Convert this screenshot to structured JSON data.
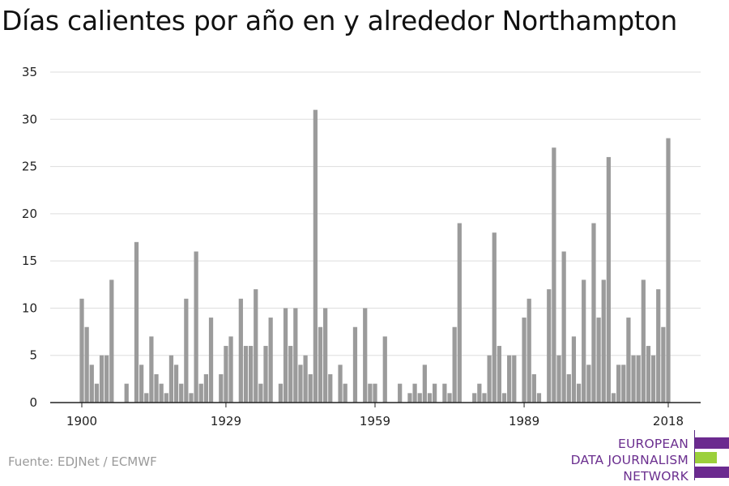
{
  "title": "Días calientes por año en y alrededor Northampton",
  "source": "Fuente: EDJNet / ECMWF",
  "logo": {
    "lines": [
      "EUROPEAN",
      "DATA JOURNALISM",
      "NETWORK"
    ],
    "colors": {
      "purple": "#6b2a8f",
      "green": "#9bd03b"
    }
  },
  "colors": {
    "bar": "#9b9b9b",
    "grid": "#dddddd",
    "axis": "#222222",
    "text": "#222222"
  },
  "chart_data": {
    "type": "bar",
    "title": "Días calientes por año en y alrededor Northampton",
    "xlabel": "",
    "ylabel": "",
    "x_ticks": [
      1900,
      1929,
      1959,
      1989,
      2018
    ],
    "y_ticks": [
      0,
      5,
      10,
      15,
      20,
      25,
      30,
      35
    ],
    "ylim": [
      0,
      35
    ],
    "xlim": [
      1900,
      2018
    ],
    "grid": true,
    "categories": [
      1900,
      1901,
      1902,
      1903,
      1904,
      1905,
      1906,
      1907,
      1908,
      1909,
      1910,
      1911,
      1912,
      1913,
      1914,
      1915,
      1916,
      1917,
      1918,
      1919,
      1920,
      1921,
      1922,
      1923,
      1924,
      1925,
      1926,
      1927,
      1928,
      1929,
      1930,
      1931,
      1932,
      1933,
      1934,
      1935,
      1936,
      1937,
      1938,
      1939,
      1940,
      1941,
      1942,
      1943,
      1944,
      1945,
      1946,
      1947,
      1948,
      1949,
      1950,
      1951,
      1952,
      1953,
      1954,
      1955,
      1956,
      1957,
      1958,
      1959,
      1960,
      1961,
      1962,
      1963,
      1964,
      1965,
      1966,
      1967,
      1968,
      1969,
      1970,
      1971,
      1972,
      1973,
      1974,
      1975,
      1976,
      1977,
      1978,
      1979,
      1980,
      1981,
      1982,
      1983,
      1984,
      1985,
      1986,
      1987,
      1988,
      1989,
      1990,
      1991,
      1992,
      1993,
      1994,
      1995,
      1996,
      1997,
      1998,
      1999,
      2000,
      2001,
      2002,
      2003,
      2004,
      2005,
      2006,
      2007,
      2008,
      2009,
      2010,
      2011,
      2012,
      2013,
      2014,
      2015,
      2016,
      2017,
      2018
    ],
    "values": [
      11,
      8,
      4,
      2,
      5,
      5,
      13,
      0,
      0,
      2,
      0,
      17,
      4,
      1,
      7,
      3,
      2,
      1,
      5,
      4,
      2,
      11,
      1,
      16,
      2,
      3,
      9,
      0,
      3,
      6,
      7,
      0,
      11,
      6,
      6,
      12,
      2,
      6,
      9,
      0,
      2,
      10,
      6,
      10,
      4,
      5,
      3,
      31,
      8,
      10,
      3,
      0,
      4,
      2,
      0,
      8,
      0,
      10,
      2,
      2,
      0,
      7,
      0,
      0,
      2,
      0,
      1,
      2,
      1,
      4,
      1,
      2,
      0,
      2,
      1,
      8,
      19,
      0,
      0,
      1,
      2,
      1,
      5,
      18,
      6,
      1,
      5,
      5,
      0,
      9,
      11,
      3,
      1,
      0,
      12,
      27,
      5,
      16,
      3,
      7,
      2,
      13,
      4,
      19,
      9,
      13,
      26,
      1,
      4,
      4,
      9,
      5,
      5,
      13,
      6,
      5,
      12,
      8,
      28
    ]
  }
}
